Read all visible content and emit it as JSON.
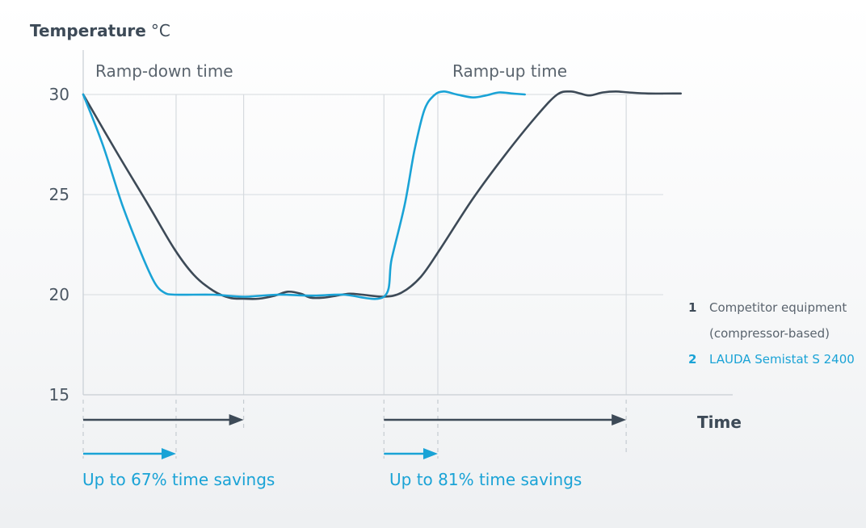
{
  "chart_data": {
    "type": "line",
    "title": "Temperature",
    "title_unit": "°C",
    "xlabel": "Time",
    "ylabel": "",
    "ylim": [
      15,
      30
    ],
    "yticks": [
      "30",
      "25",
      "20",
      "15"
    ],
    "x_range": [
      0,
      100
    ],
    "grid": true,
    "legend_position": "right",
    "phase_labels": {
      "ramp_down": "Ramp-down time",
      "ramp_up": "Ramp-up time"
    },
    "savings": {
      "ramp_down": "Up to 67% time savings",
      "ramp_up": "Up to 81% time savings"
    },
    "markers": {
      "competitor_down_end": 24.7,
      "lauda_down_end": 14.3,
      "ramp_up_start": 46.3,
      "lauda_up_end": 54.6,
      "competitor_up_end": 83.6
    },
    "series": [
      {
        "num": "1",
        "name_line1": "Competitor equipment",
        "name_line2": "(compressor-based)",
        "color": "#3d4a57",
        "points": [
          [
            0,
            30
          ],
          [
            5,
            27.2
          ],
          [
            10,
            24.5
          ],
          [
            14,
            22.3
          ],
          [
            17,
            21
          ],
          [
            20,
            20.2
          ],
          [
            22.5,
            19.85
          ],
          [
            24.7,
            19.8
          ],
          [
            27,
            19.8
          ],
          [
            29.5,
            19.95
          ],
          [
            31.5,
            20.15
          ],
          [
            33.5,
            20.05
          ],
          [
            35,
            19.85
          ],
          [
            37,
            19.85
          ],
          [
            39,
            19.95
          ],
          [
            41,
            20.05
          ],
          [
            43,
            20.0
          ],
          [
            46.3,
            19.9
          ],
          [
            49,
            20.1
          ],
          [
            52,
            20.9
          ],
          [
            55,
            22.3
          ],
          [
            60,
            24.8
          ],
          [
            65,
            27.0
          ],
          [
            70,
            29.0
          ],
          [
            73,
            30.0
          ],
          [
            75,
            30.15
          ],
          [
            76.5,
            30.05
          ],
          [
            78,
            29.95
          ],
          [
            80,
            30.1
          ],
          [
            82,
            30.15
          ],
          [
            84,
            30.1
          ],
          [
            87,
            30.05
          ],
          [
            92,
            30.05
          ]
        ]
      },
      {
        "num": "2",
        "name_line1": "LAUDA Semistat S 2400",
        "color": "#1aa3d6",
        "points": [
          [
            0,
            30
          ],
          [
            3,
            27.5
          ],
          [
            6,
            24.5
          ],
          [
            9,
            22
          ],
          [
            11,
            20.6
          ],
          [
            12.5,
            20.1
          ],
          [
            14.3,
            20.0
          ],
          [
            20,
            20.0
          ],
          [
            24.7,
            19.9
          ],
          [
            30,
            20.0
          ],
          [
            35,
            19.95
          ],
          [
            40,
            20.0
          ],
          [
            46.3,
            19.9
          ],
          [
            47.5,
            21.8
          ],
          [
            49.5,
            24.5
          ],
          [
            51,
            27.2
          ],
          [
            52.5,
            29.2
          ],
          [
            54,
            29.95
          ],
          [
            55.5,
            30.15
          ],
          [
            57.5,
            30.0
          ],
          [
            60,
            29.85
          ],
          [
            62,
            29.95
          ],
          [
            64,
            30.1
          ],
          [
            66,
            30.05
          ],
          [
            68,
            30.0
          ]
        ]
      }
    ]
  }
}
